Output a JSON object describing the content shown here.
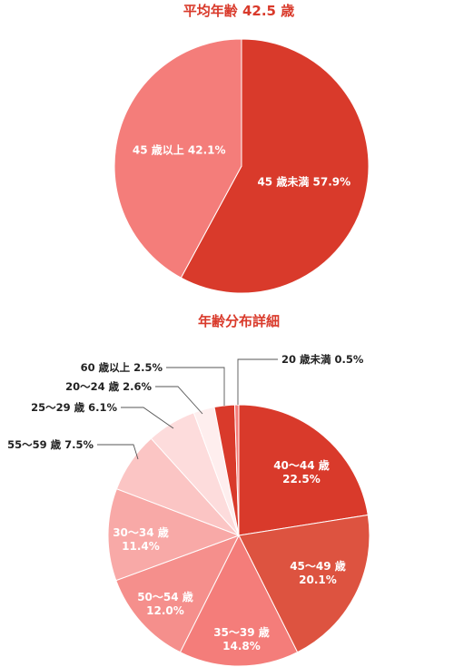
{
  "chart_data": [
    {
      "type": "pie",
      "title": "平均年齢 42.5 歳",
      "slices": [
        {
          "label": "45 歳未満 57.9%",
          "value": 57.9,
          "color": "#d93a2b"
        },
        {
          "label": "45 歳以上 42.1%",
          "value": 42.1,
          "color": "#f47d7a"
        }
      ]
    },
    {
      "type": "pie",
      "title": "年齢分布詳細",
      "slices": [
        {
          "label": [
            "40〜44 歳",
            "22.5%"
          ],
          "value": 22.5,
          "color": "#d93a2b"
        },
        {
          "label": [
            "45〜49 歳",
            "20.1%"
          ],
          "value": 20.1,
          "color": "#dd5340"
        },
        {
          "label": [
            "35〜39 歳",
            "14.8%"
          ],
          "value": 14.8,
          "color": "#f47d7a"
        },
        {
          "label": [
            "50〜54 歳",
            "12.0%"
          ],
          "value": 12.0,
          "color": "#f58f8c"
        },
        {
          "label": [
            "30〜34 歳",
            "11.4%"
          ],
          "value": 11.4,
          "color": "#f8a9a7"
        },
        {
          "label": [
            "55〜59 歳 7.5%"
          ],
          "value": 7.5,
          "color": "#fbc5c4"
        },
        {
          "label": [
            "25〜29 歳 6.1%"
          ],
          "value": 6.1,
          "color": "#fddcdc"
        },
        {
          "label": [
            "20〜24 歳 2.6%"
          ],
          "value": 2.6,
          "color": "#feeeee"
        },
        {
          "label": [
            "60 歳以上 2.5%"
          ],
          "value": 2.5,
          "color": "#d93a2b"
        },
        {
          "label": [
            "20 歳未満 0.5%"
          ],
          "value": 0.5,
          "color": "#f47d7a"
        }
      ]
    }
  ]
}
